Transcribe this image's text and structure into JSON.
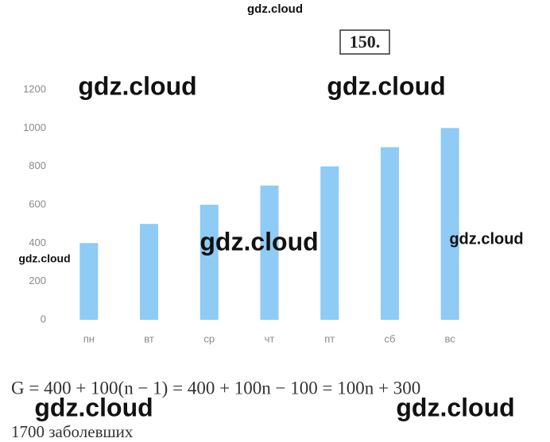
{
  "problem_number": "150.",
  "chart_data": {
    "type": "bar",
    "categories": [
      "пн",
      "вт",
      "ср",
      "чт",
      "пт",
      "сб",
      "вс"
    ],
    "values": [
      400,
      500,
      600,
      700,
      800,
      900,
      1000
    ],
    "color": "#8ecbf5",
    "ylim": [
      0,
      1200
    ],
    "yticks": [
      0,
      200,
      400,
      600,
      800,
      1000,
      1200
    ],
    "grid": false
  },
  "formula": "G = 400 + 100(n − 1) = 400 + 100n − 100 = 100n + 300",
  "answer": "1700 заболевших",
  "watermarks": [
    "gdz.cloud",
    "gdz.cloud",
    "gdz.cloud",
    "gdz.cloud",
    "gdz.cloud",
    "gdz.cloud",
    "gdz.cloud",
    "gdz.cloud"
  ]
}
